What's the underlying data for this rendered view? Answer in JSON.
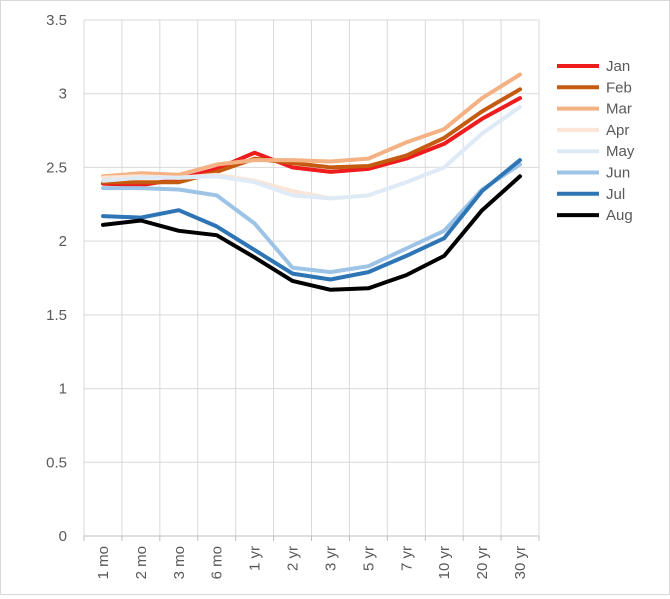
{
  "chart_data": {
    "type": "line",
    "title": "",
    "xlabel": "",
    "ylabel": "",
    "ylim": [
      0,
      3.5
    ],
    "yticks": [
      0,
      0.5,
      1,
      1.5,
      2,
      2.5,
      3,
      3.5
    ],
    "ytick_labels": [
      "0",
      "0.5",
      "1",
      "1.5",
      "2",
      "2.5",
      "3",
      "3.5"
    ],
    "grid": true,
    "legend": "right",
    "categories": [
      "1 mo",
      "2 mo",
      "3 mo",
      "6 mo",
      "1 yr",
      "2 yr",
      "3 yr",
      "5 yr",
      "7 yr",
      "10 yr",
      "20 yr",
      "30 yr"
    ],
    "series": [
      {
        "name": "Jan",
        "color": "#ee1c1c",
        "values": [
          2.39,
          2.38,
          2.42,
          2.49,
          2.6,
          2.5,
          2.47,
          2.49,
          2.56,
          2.66,
          2.83,
          2.97
        ]
      },
      {
        "name": "Feb",
        "color": "#c55a11",
        "values": [
          2.4,
          2.4,
          2.4,
          2.47,
          2.56,
          2.53,
          2.5,
          2.51,
          2.58,
          2.7,
          2.88,
          3.03
        ]
      },
      {
        "name": "Mar",
        "color": "#f4b183",
        "values": [
          2.44,
          2.46,
          2.45,
          2.52,
          2.55,
          2.55,
          2.54,
          2.56,
          2.67,
          2.76,
          2.97,
          3.13
        ]
      },
      {
        "name": "Apr",
        "color": "#fbe5d6",
        "values": [
          2.43,
          2.44,
          2.43,
          2.45,
          2.41,
          2.34,
          2.29,
          2.31,
          2.4,
          2.5,
          2.73,
          2.91
        ]
      },
      {
        "name": "May",
        "color": "#deebf7",
        "values": [
          2.41,
          2.43,
          2.43,
          2.44,
          2.4,
          2.31,
          2.29,
          2.31,
          2.4,
          2.5,
          2.73,
          2.91
        ]
      },
      {
        "name": "Jun",
        "color": "#9dc3e6",
        "values": [
          2.36,
          2.36,
          2.35,
          2.31,
          2.12,
          1.82,
          1.79,
          1.83,
          1.95,
          2.07,
          2.35,
          2.52
        ]
      },
      {
        "name": "Jul",
        "color": "#2e75b6",
        "values": [
          2.17,
          2.16,
          2.21,
          2.1,
          1.94,
          1.78,
          1.74,
          1.79,
          1.9,
          2.02,
          2.34,
          2.55
        ]
      },
      {
        "name": "Aug",
        "color": "#000000",
        "values": [
          2.11,
          2.14,
          2.07,
          2.04,
          1.89,
          1.73,
          1.67,
          1.68,
          1.77,
          1.9,
          2.21,
          2.44
        ]
      }
    ]
  }
}
